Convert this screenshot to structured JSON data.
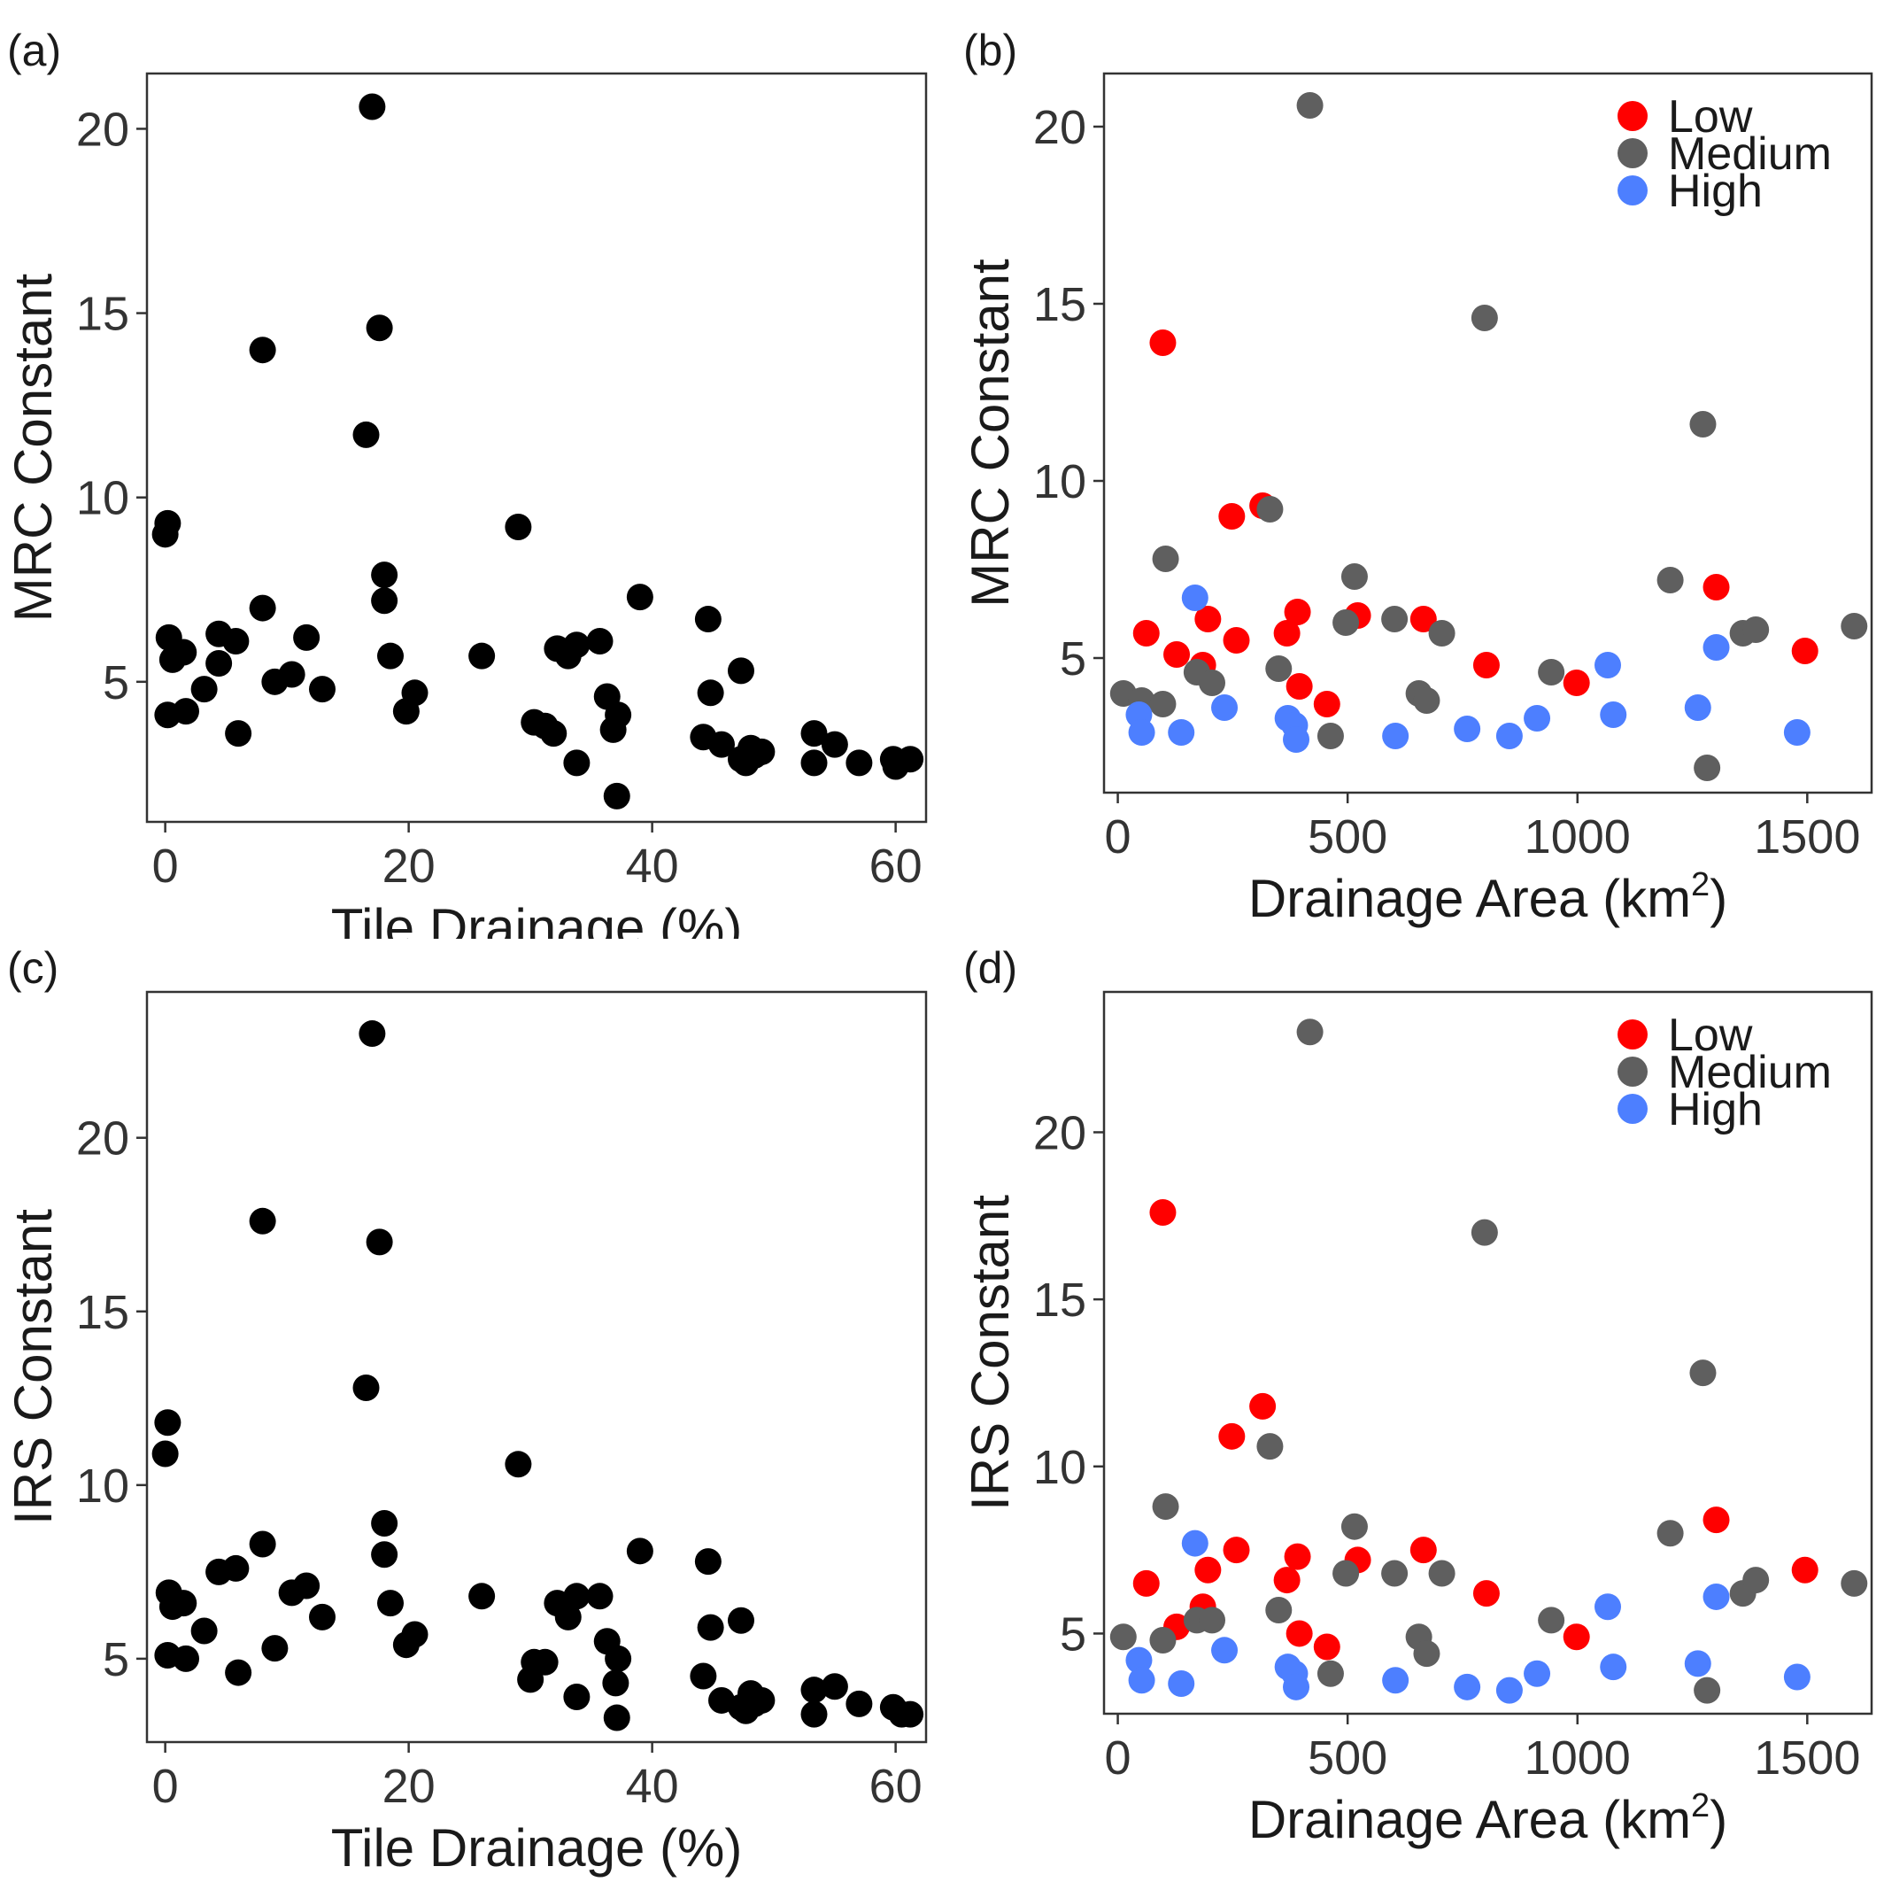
{
  "colors": {
    "low": "#ff0000",
    "medium": "#5f5f5f",
    "high": "#4d7fff",
    "black": "#000000"
  },
  "chart_data": [
    {
      "panel": "(a)",
      "type": "scatter",
      "xlabel": "Tile Drainage (%)",
      "ylabel": "MRC Constant",
      "xlim": [
        -1.5,
        62.5
      ],
      "ylim": [
        1.2,
        21.5
      ],
      "xticks": [
        0,
        20,
        40,
        60
      ],
      "yticks": [
        5,
        10,
        15,
        20
      ],
      "series": [
        {
          "color": "#000000",
          "points": [
            [
              17,
              20.6
            ],
            [
              17.6,
              14.6
            ],
            [
              8,
              14
            ],
            [
              16.5,
              11.7
            ],
            [
              0.2,
              9.3
            ],
            [
              0,
              9
            ],
            [
              29,
              9.2
            ],
            [
              18,
              7.9
            ],
            [
              18,
              7.2
            ],
            [
              8,
              7
            ],
            [
              39,
              7.3
            ],
            [
              0.3,
              6.2
            ],
            [
              0.6,
              5.6
            ],
            [
              1.5,
              5.8
            ],
            [
              4.4,
              6.3
            ],
            [
              4.4,
              5.5
            ],
            [
              5.8,
              6.1
            ],
            [
              11.6,
              6.2
            ],
            [
              10.4,
              5.2
            ],
            [
              9,
              5
            ],
            [
              12.9,
              4.8
            ],
            [
              3.2,
              4.8
            ],
            [
              0.2,
              4.1
            ],
            [
              1.7,
              4.2
            ],
            [
              6,
              3.6
            ],
            [
              18.5,
              5.7
            ],
            [
              20.5,
              4.7
            ],
            [
              19.8,
              4.2
            ],
            [
              26,
              5.7
            ],
            [
              32.2,
              5.9
            ],
            [
              33.1,
              5.7
            ],
            [
              33.8,
              6
            ],
            [
              35.7,
              6.1
            ],
            [
              36.3,
              4.6
            ],
            [
              37.2,
              4.1
            ],
            [
              30.3,
              3.9
            ],
            [
              31.2,
              3.8
            ],
            [
              31.9,
              3.6
            ],
            [
              33.8,
              2.8
            ],
            [
              36.8,
              3.7
            ],
            [
              37.1,
              1.9
            ],
            [
              44.6,
              6.7
            ],
            [
              44.8,
              4.7
            ],
            [
              47.3,
              5.3
            ],
            [
              44.2,
              3.5
            ],
            [
              45.7,
              3.3
            ],
            [
              47.3,
              2.9
            ],
            [
              48.1,
              3.2
            ],
            [
              48.4,
              3
            ],
            [
              49,
              3.1
            ],
            [
              47.7,
              2.8
            ],
            [
              53.3,
              3.6
            ],
            [
              55,
              3.3
            ],
            [
              53.3,
              2.8
            ],
            [
              57,
              2.8
            ],
            [
              59.8,
              2.9
            ],
            [
              61.2,
              2.9
            ],
            [
              60,
              2.7
            ]
          ]
        }
      ]
    },
    {
      "panel": "(b)",
      "type": "scatter",
      "xlabel": "Drainage Area (km",
      "xlabel_sup": "2",
      "xlabel_end": ")",
      "ylabel": "MRC Constant",
      "xlim": [
        -30,
        1640
      ],
      "ylim": [
        1.2,
        21.5
      ],
      "xticks": [
        0,
        500,
        1000,
        1500
      ],
      "yticks": [
        5,
        10,
        15,
        20
      ],
      "legend": {
        "position": "top-right",
        "entries": [
          {
            "label": "Low",
            "color": "#ff0000"
          },
          {
            "label": "Medium",
            "color": "#5f5f5f"
          },
          {
            "label": "High",
            "color": "#4d7fff"
          }
        ]
      },
      "series": [
        {
          "name": "Low",
          "color": "#ff0000",
          "points": [
            [
              98,
              13.9
            ],
            [
              248,
              9
            ],
            [
              315,
              9.3
            ],
            [
              62,
              5.7
            ],
            [
              128,
              5.1
            ],
            [
              185,
              4.8
            ],
            [
              196,
              6.1
            ],
            [
              258,
              5.5
            ],
            [
              368,
              5.7
            ],
            [
              391,
              6.3
            ],
            [
              395,
              4.2
            ],
            [
              455,
              3.7
            ],
            [
              522,
              6.2
            ],
            [
              665,
              6.1
            ],
            [
              802,
              4.8
            ],
            [
              998,
              4.3
            ],
            [
              1302,
              7
            ],
            [
              1495,
              5.2
            ]
          ]
        },
        {
          "name": "Medium",
          "color": "#5f5f5f",
          "points": [
            [
              418,
              20.6
            ],
            [
              798,
              14.6
            ],
            [
              1273,
              11.6
            ],
            [
              331,
              9.2
            ],
            [
              104,
              7.8
            ],
            [
              515,
              7.3
            ],
            [
              1202,
              7.2
            ],
            [
              496,
              6
            ],
            [
              602,
              6.1
            ],
            [
              705,
              5.7
            ],
            [
              1360,
              5.7
            ],
            [
              1388,
              5.8
            ],
            [
              1602,
              5.9
            ],
            [
              350,
              4.7
            ],
            [
              943,
              4.6
            ],
            [
              172,
              4.6
            ],
            [
              205,
              4.3
            ],
            [
              12,
              4
            ],
            [
              52,
              3.8
            ],
            [
              98,
              3.7
            ],
            [
              655,
              4
            ],
            [
              672,
              3.8
            ],
            [
              463,
              2.8
            ],
            [
              1282,
              1.9
            ]
          ]
        },
        {
          "name": "High",
          "color": "#4d7fff",
          "points": [
            [
              168,
              6.7
            ],
            [
              1066,
              4.8
            ],
            [
              1302,
              5.3
            ],
            [
              46,
              3.4
            ],
            [
              232,
              3.6
            ],
            [
              370,
              3.3
            ],
            [
              385,
              3.1
            ],
            [
              1262,
              3.6
            ],
            [
              1078,
              3.4
            ],
            [
              912,
              3.3
            ],
            [
              52,
              2.9
            ],
            [
              138,
              2.9
            ],
            [
              388,
              2.7
            ],
            [
              604,
              2.8
            ],
            [
              760,
              3
            ],
            [
              852,
              2.8
            ],
            [
              1478,
              2.9
            ]
          ]
        }
      ]
    },
    {
      "panel": "(c)",
      "type": "scatter",
      "xlabel": "Tile Drainage (%)",
      "ylabel": "IRS Constant",
      "xlim": [
        -1.5,
        62.5
      ],
      "ylim": [
        2.6,
        24.2
      ],
      "xticks": [
        0,
        20,
        40,
        60
      ],
      "yticks": [
        5,
        10,
        15,
        20
      ],
      "series": [
        {
          "color": "#000000",
          "points": [
            [
              17,
              23
            ],
            [
              8,
              17.6
            ],
            [
              17.6,
              17
            ],
            [
              16.5,
              12.8
            ],
            [
              0.2,
              11.8
            ],
            [
              0,
              10.9
            ],
            [
              29,
              10.6
            ],
            [
              18,
              8.9
            ],
            [
              18,
              8
            ],
            [
              8,
              8.3
            ],
            [
              39,
              8.1
            ],
            [
              0.3,
              6.9
            ],
            [
              0.6,
              6.5
            ],
            [
              1.5,
              6.6
            ],
            [
              4.4,
              7.5
            ],
            [
              5.8,
              7.6
            ],
            [
              11.6,
              7.1
            ],
            [
              10.4,
              6.9
            ],
            [
              12.9,
              6.2
            ],
            [
              18.5,
              6.6
            ],
            [
              26,
              6.8
            ],
            [
              3.2,
              5.8
            ],
            [
              9,
              5.3
            ],
            [
              20.5,
              5.7
            ],
            [
              19.8,
              5.4
            ],
            [
              0.2,
              5.1
            ],
            [
              1.7,
              5
            ],
            [
              6,
              4.6
            ],
            [
              32.2,
              6.6
            ],
            [
              33.1,
              6.2
            ],
            [
              33.8,
              6.8
            ],
            [
              35.7,
              6.8
            ],
            [
              36.3,
              5.5
            ],
            [
              37.2,
              5
            ],
            [
              30.3,
              4.9
            ],
            [
              31.2,
              4.9
            ],
            [
              30,
              4.4
            ],
            [
              33.8,
              3.9
            ],
            [
              37,
              4.3
            ],
            [
              37.1,
              3.3
            ],
            [
              44.6,
              7.8
            ],
            [
              44.8,
              5.9
            ],
            [
              47.3,
              6.1
            ],
            [
              44.2,
              4.5
            ],
            [
              45.7,
              3.8
            ],
            [
              47.3,
              3.6
            ],
            [
              48.1,
              4
            ],
            [
              48.4,
              3.7
            ],
            [
              49,
              3.8
            ],
            [
              47.7,
              3.5
            ],
            [
              53.3,
              4.1
            ],
            [
              55,
              4.2
            ],
            [
              53.3,
              3.4
            ],
            [
              57,
              3.7
            ],
            [
              59.8,
              3.6
            ],
            [
              61.2,
              3.4
            ],
            [
              60.5,
              3.4
            ]
          ]
        }
      ]
    },
    {
      "panel": "(d)",
      "type": "scatter",
      "xlabel": "Drainage Area (km",
      "xlabel_sup": "2",
      "xlabel_end": ")",
      "ylabel": "IRS Constant",
      "xlim": [
        -30,
        1640
      ],
      "ylim": [
        2.6,
        24.2
      ],
      "xticks": [
        0,
        500,
        1000,
        1500
      ],
      "yticks": [
        5,
        10,
        15,
        20
      ],
      "legend": {
        "position": "top-right",
        "entries": [
          {
            "label": "Low",
            "color": "#ff0000"
          },
          {
            "label": "Medium",
            "color": "#5f5f5f"
          },
          {
            "label": "High",
            "color": "#4d7fff"
          }
        ]
      },
      "series": [
        {
          "name": "Low",
          "color": "#ff0000",
          "points": [
            [
              98,
              17.6
            ],
            [
              315,
              11.8
            ],
            [
              248,
              10.9
            ],
            [
              62,
              6.5
            ],
            [
              128,
              5.2
            ],
            [
              185,
              5.8
            ],
            [
              196,
              6.9
            ],
            [
              258,
              7.5
            ],
            [
              368,
              6.6
            ],
            [
              391,
              7.3
            ],
            [
              395,
              5
            ],
            [
              455,
              4.6
            ],
            [
              522,
              7.2
            ],
            [
              665,
              7.5
            ],
            [
              802,
              6.2
            ],
            [
              998,
              4.9
            ],
            [
              1302,
              8.4
            ],
            [
              1495,
              6.9
            ]
          ]
        },
        {
          "name": "Medium",
          "color": "#5f5f5f",
          "points": [
            [
              418,
              23
            ],
            [
              798,
              17
            ],
            [
              1273,
              12.8
            ],
            [
              331,
              10.6
            ],
            [
              104,
              8.8
            ],
            [
              515,
              8.2
            ],
            [
              1202,
              8
            ],
            [
              496,
              6.8
            ],
            [
              602,
              6.8
            ],
            [
              705,
              6.8
            ],
            [
              1360,
              6.2
            ],
            [
              1388,
              6.6
            ],
            [
              1602,
              6.5
            ],
            [
              350,
              5.7
            ],
            [
              943,
              5.4
            ],
            [
              172,
              5.4
            ],
            [
              205,
              5.4
            ],
            [
              12,
              4.9
            ],
            [
              98,
              4.8
            ],
            [
              655,
              4.9
            ],
            [
              672,
              4.4
            ],
            [
              463,
              3.8
            ],
            [
              1282,
              3.3
            ]
          ]
        },
        {
          "name": "High",
          "color": "#4d7fff",
          "points": [
            [
              168,
              7.7
            ],
            [
              1066,
              5.8
            ],
            [
              1302,
              6.1
            ],
            [
              46,
              4.2
            ],
            [
              52,
              3.6
            ],
            [
              232,
              4.5
            ],
            [
              370,
              4
            ],
            [
              385,
              3.8
            ],
            [
              1262,
              4.1
            ],
            [
              1078,
              4
            ],
            [
              912,
              3.8
            ],
            [
              138,
              3.5
            ],
            [
              388,
              3.4
            ],
            [
              604,
              3.6
            ],
            [
              760,
              3.4
            ],
            [
              852,
              3.3
            ],
            [
              1478,
              3.7
            ]
          ]
        }
      ]
    }
  ]
}
